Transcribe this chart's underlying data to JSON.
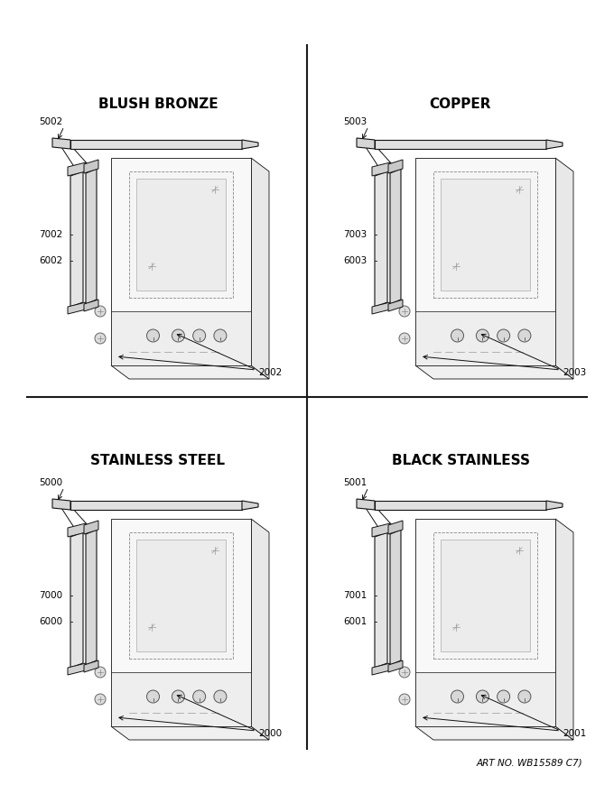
{
  "panels": [
    {
      "title": "BLUSH BRONZE",
      "part_top": "2002",
      "part_left_top": "6002",
      "part_left_mid": "7002",
      "part_bottom": "5002",
      "grid_col": 0,
      "grid_row": 0
    },
    {
      "title": "COPPER",
      "part_top": "2003",
      "part_left_top": "6003",
      "part_left_mid": "7003",
      "part_bottom": "5003",
      "grid_col": 1,
      "grid_row": 0
    },
    {
      "title": "STAINLESS STEEL",
      "part_top": "2000",
      "part_left_top": "6000",
      "part_left_mid": "7000",
      "part_bottom": "5000",
      "grid_col": 0,
      "grid_row": 1
    },
    {
      "title": "BLACK STAINLESS",
      "part_top": "2001",
      "part_left_top": "6001",
      "part_left_mid": "7001",
      "part_bottom": "5001",
      "grid_col": 1,
      "grid_row": 1
    }
  ],
  "footer_text": "ART NO. WB15589 C7)",
  "bg_color": "#ffffff",
  "line_color": "#000000",
  "divider_color": "#1a1a1a",
  "draw_color": "#555555",
  "text_color": "#000000"
}
